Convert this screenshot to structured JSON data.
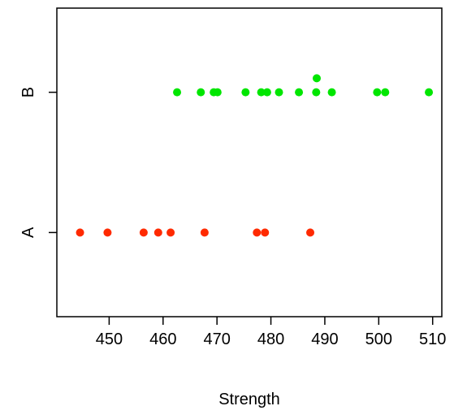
{
  "chart_data": {
    "type": "scatter",
    "title": "",
    "xlabel": "Strength",
    "ylabel": "",
    "xlim": [
      440.3,
      511.7
    ],
    "ylim": [
      0.4,
      2.6
    ],
    "x_ticks": [
      450,
      460,
      470,
      480,
      490,
      500,
      510
    ],
    "categories": [
      "A",
      "B"
    ],
    "grid": false,
    "legend": "none",
    "series": [
      {
        "category": "A",
        "color": "#ff2a00",
        "points": [
          {
            "x": 444.6,
            "y": 1
          },
          {
            "x": 449.7,
            "y": 1
          },
          {
            "x": 456.4,
            "y": 1
          },
          {
            "x": 459.1,
            "y": 1
          },
          {
            "x": 461.4,
            "y": 1
          },
          {
            "x": 467.7,
            "y": 1
          },
          {
            "x": 477.4,
            "y": 1
          },
          {
            "x": 478.9,
            "y": 1
          },
          {
            "x": 487.3,
            "y": 1
          }
        ]
      },
      {
        "category": "B",
        "color": "#00e600",
        "points": [
          {
            "x": 462.6,
            "y": 2
          },
          {
            "x": 467.0,
            "y": 2
          },
          {
            "x": 469.4,
            "y": 2
          },
          {
            "x": 470.1,
            "y": 2
          },
          {
            "x": 475.3,
            "y": 2
          },
          {
            "x": 478.2,
            "y": 2
          },
          {
            "x": 479.3,
            "y": 2
          },
          {
            "x": 481.5,
            "y": 2
          },
          {
            "x": 485.2,
            "y": 2
          },
          {
            "x": 488.4,
            "y": 2
          },
          {
            "x": 488.5,
            "y": 2.1
          },
          {
            "x": 491.3,
            "y": 2
          },
          {
            "x": 499.7,
            "y": 2
          },
          {
            "x": 501.2,
            "y": 2
          },
          {
            "x": 509.3,
            "y": 2
          }
        ]
      }
    ]
  }
}
